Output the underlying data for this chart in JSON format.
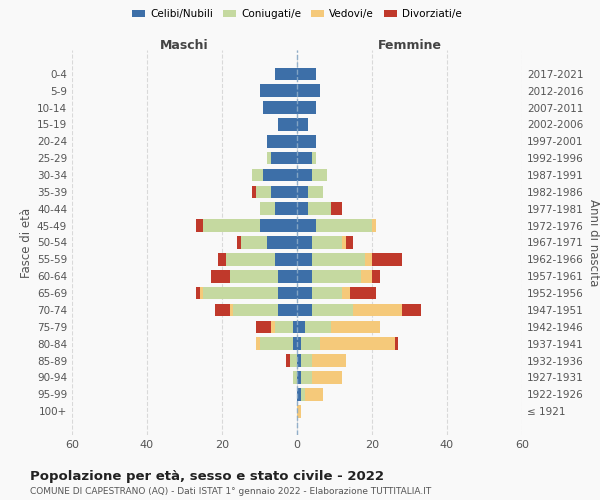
{
  "age_groups": [
    "100+",
    "95-99",
    "90-94",
    "85-89",
    "80-84",
    "75-79",
    "70-74",
    "65-69",
    "60-64",
    "55-59",
    "50-54",
    "45-49",
    "40-44",
    "35-39",
    "30-34",
    "25-29",
    "20-24",
    "15-19",
    "10-14",
    "5-9",
    "0-4"
  ],
  "birth_years": [
    "≤ 1921",
    "1922-1926",
    "1927-1931",
    "1932-1936",
    "1937-1941",
    "1942-1946",
    "1947-1951",
    "1952-1956",
    "1957-1961",
    "1962-1966",
    "1967-1971",
    "1972-1976",
    "1977-1981",
    "1982-1986",
    "1987-1991",
    "1992-1996",
    "1997-2001",
    "2002-2006",
    "2007-2011",
    "2012-2016",
    "2017-2021"
  ],
  "maschi": {
    "celibi": [
      0,
      0,
      0,
      0,
      1,
      1,
      5,
      5,
      5,
      6,
      8,
      10,
      6,
      7,
      9,
      7,
      8,
      5,
      9,
      10,
      6
    ],
    "coniugati": [
      0,
      0,
      1,
      2,
      9,
      5,
      12,
      20,
      13,
      13,
      7,
      15,
      4,
      4,
      3,
      1,
      0,
      0,
      0,
      0,
      0
    ],
    "vedovi": [
      0,
      0,
      0,
      0,
      1,
      1,
      1,
      1,
      0,
      0,
      0,
      0,
      0,
      0,
      0,
      0,
      0,
      0,
      0,
      0,
      0
    ],
    "divorziati": [
      0,
      0,
      0,
      1,
      0,
      4,
      4,
      1,
      5,
      2,
      1,
      2,
      0,
      1,
      0,
      0,
      0,
      0,
      0,
      0,
      0
    ]
  },
  "femmine": {
    "nubili": [
      0,
      1,
      1,
      1,
      1,
      2,
      4,
      4,
      4,
      4,
      4,
      5,
      3,
      3,
      4,
      4,
      5,
      3,
      5,
      6,
      5
    ],
    "coniugate": [
      0,
      1,
      3,
      3,
      5,
      7,
      11,
      8,
      13,
      14,
      8,
      15,
      6,
      4,
      4,
      1,
      0,
      0,
      0,
      0,
      0
    ],
    "vedove": [
      1,
      5,
      8,
      9,
      20,
      13,
      13,
      2,
      3,
      2,
      1,
      1,
      0,
      0,
      0,
      0,
      0,
      0,
      0,
      0,
      0
    ],
    "divorziate": [
      0,
      0,
      0,
      0,
      1,
      0,
      5,
      7,
      2,
      8,
      2,
      0,
      3,
      0,
      0,
      0,
      0,
      0,
      0,
      0,
      0
    ]
  },
  "colors": {
    "celibi": "#3d6fa8",
    "coniugati": "#c5d9a0",
    "vedovi": "#f5c97a",
    "divorziati": "#c0392b"
  },
  "legend_labels": [
    "Celibi/Nubili",
    "Coniugati/e",
    "Vedovi/e",
    "Divorziati/e"
  ],
  "title": "Popolazione per età, sesso e stato civile - 2022",
  "subtitle": "COMUNE DI CAPESTRANO (AQ) - Dati ISTAT 1° gennaio 2022 - Elaborazione TUTTITALIA.IT",
  "xlabel_left": "Maschi",
  "xlabel_right": "Femmine",
  "ylabel_left": "Fasce di età",
  "ylabel_right": "Anni di nascita",
  "xlim": 60,
  "background_color": "#f9f9f9",
  "grid_color": "#cccccc"
}
